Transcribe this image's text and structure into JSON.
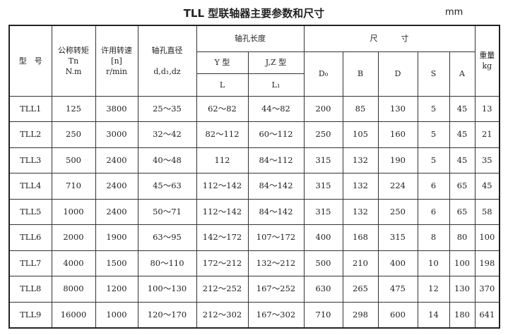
{
  "title": "TLL 型联轴器主要参数和尺寸",
  "unit": "mm",
  "headers": {
    "model": "型　号",
    "torque": [
      "公称转矩",
      "Tn",
      "N.m"
    ],
    "speed": [
      "许用转速",
      "[n]",
      "r/min"
    ],
    "bore": [
      "轴孔直径",
      "d,d₁,dz"
    ],
    "bore_length": "轴孔长度",
    "y_type": "Y 型",
    "jz_type": "J,Z 型",
    "L": "L",
    "L1": "L₁",
    "dimensions": "尺　　　寸",
    "D0": "D₀",
    "B": "B",
    "D": "D",
    "S": "S",
    "A": "A",
    "weight": [
      "重量",
      "kg"
    ]
  },
  "rows": [
    [
      "TLL1",
      "125",
      "3800",
      "25～35",
      "62～82",
      "44～82",
      "200",
      "85",
      "130",
      "5",
      "45",
      "13"
    ],
    [
      "TLL2",
      "250",
      "3000",
      "32～42",
      "82～112",
      "60～112",
      "250",
      "105",
      "160",
      "5",
      "45",
      "21"
    ],
    [
      "TLL3",
      "500",
      "2400",
      "40～48",
      "112",
      "84～112",
      "315",
      "132",
      "190",
      "5",
      "45",
      "35"
    ],
    [
      "TLL4",
      "710",
      "2400",
      "45～63",
      "112～142",
      "84～142",
      "315",
      "132",
      "224",
      "6",
      "65",
      "45"
    ],
    [
      "TLL5",
      "1000",
      "2400",
      "50～71",
      "112～142",
      "84～142",
      "315",
      "132",
      "250",
      "6",
      "65",
      "58"
    ],
    [
      "TLL6",
      "2000",
      "1900",
      "63～95",
      "142～172",
      "107～172",
      "400",
      "168",
      "315",
      "8",
      "80",
      "100"
    ],
    [
      "TLL7",
      "4000",
      "1500",
      "80～110",
      "172～212",
      "132～212",
      "500",
      "210",
      "400",
      "10",
      "100",
      "198"
    ],
    [
      "TLL8",
      "8000",
      "1200",
      "100～130",
      "212～252",
      "167～252",
      "630",
      "265",
      "475",
      "12",
      "130",
      "370"
    ],
    [
      "TLL9",
      "16000",
      "1000",
      "120～170",
      "212～302",
      "167～302",
      "710",
      "298",
      "600",
      "14",
      "180",
      "641"
    ]
  ]
}
